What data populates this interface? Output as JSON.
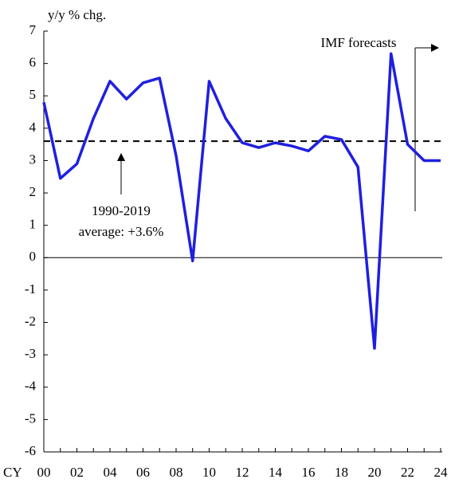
{
  "chart_data": {
    "type": "line",
    "y_label": "y/y % chg.",
    "x_label": "CY",
    "categories": [
      "00",
      null,
      "02",
      null,
      "04",
      null,
      "06",
      null,
      "08",
      null,
      "10",
      null,
      "12",
      null,
      "14",
      null,
      "16",
      null,
      "18",
      null,
      "20",
      null,
      "22",
      null,
      "24"
    ],
    "values": [
      4.8,
      2.45,
      2.9,
      4.3,
      5.45,
      4.9,
      5.4,
      5.55,
      3.15,
      -0.1,
      5.45,
      4.3,
      3.55,
      3.4,
      3.55,
      3.45,
      3.3,
      3.75,
      3.65,
      2.8,
      -2.8,
      6.3,
      3.5,
      3.0,
      3.0
    ],
    "color": "#1f1fe0",
    "ylim": [
      -6,
      7
    ],
    "yticks": [
      -6,
      -5,
      -4,
      -3,
      -2,
      -1,
      0,
      1,
      2,
      3,
      4,
      5,
      6,
      7
    ],
    "average": 3.6,
    "average_label": [
      "1990-2019",
      "average: +3.6%"
    ],
    "forecast_label": "IMF forecasts"
  }
}
